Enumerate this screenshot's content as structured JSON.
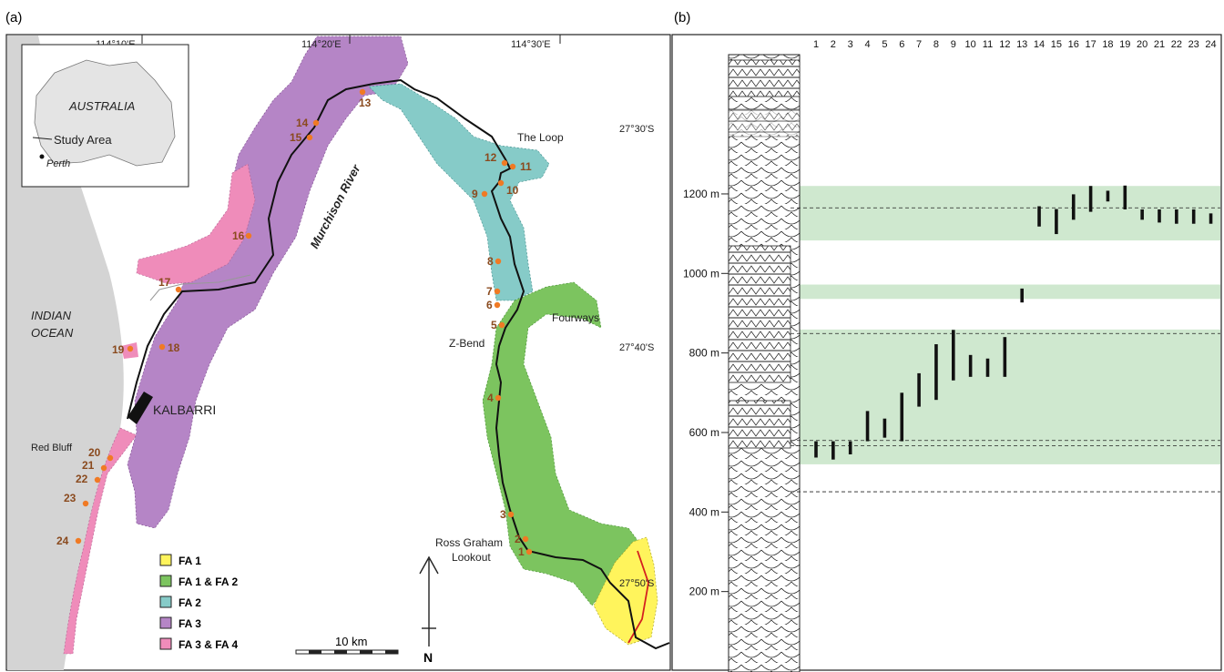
{
  "panels": {
    "a_label": "(a)",
    "b_label": "(b)"
  },
  "map": {
    "longitudes": [
      "114°10'E",
      "114°20'E",
      "114°30'E"
    ],
    "latitudes": [
      "27°30'S",
      "27°40'S",
      "27°50'S"
    ],
    "inset": {
      "country": "AUSTRALIA",
      "study_area": "Study Area",
      "city": "Perth"
    },
    "labels": {
      "ocean": "INDIAN OCEAN",
      "ocean_line1": "INDIAN",
      "ocean_line2": "OCEAN",
      "river": "Murchison River",
      "town": "KALBARRI",
      "red_bluff": "Red Bluff",
      "the_loop": "The Loop",
      "fourways": "Fourways",
      "z_bend": "Z-Bend",
      "ross_graham": "Ross Graham Lookout",
      "ross_line1": "Ross Graham",
      "ross_line2": "Lookout"
    },
    "scale_bar": "10 km",
    "north": "N",
    "legend": [
      {
        "label": "FA 1",
        "color": "#fff45c"
      },
      {
        "label": "FA 1 & FA 2",
        "color": "#7cc45f"
      },
      {
        "label": "FA 2",
        "color": "#86cbc8"
      },
      {
        "label": "FA 3",
        "color": "#b585c6"
      },
      {
        "label": "FA 3 & FA 4",
        "color": "#ef8cba"
      }
    ],
    "sites": [
      "1",
      "2",
      "3",
      "4",
      "5",
      "6",
      "7",
      "8",
      "9",
      "10",
      "11",
      "12",
      "13",
      "14",
      "15",
      "16",
      "17",
      "18",
      "19",
      "20",
      "21",
      "22",
      "23",
      "24"
    ]
  },
  "section": {
    "y_ticks": [
      "200 m",
      "400 m",
      "600 m",
      "800 m",
      "1000 m",
      "1200 m"
    ],
    "columns": [
      "1",
      "2",
      "3",
      "4",
      "5",
      "6",
      "7",
      "8",
      "9",
      "10",
      "11",
      "12",
      "13",
      "14",
      "15",
      "16",
      "17",
      "18",
      "19",
      "20",
      "21",
      "22",
      "23",
      "24"
    ],
    "intervals_m": [
      [
        537,
        578
      ],
      [
        532,
        578
      ],
      [
        545,
        578
      ],
      [
        578,
        654
      ],
      [
        587,
        635
      ],
      [
        578,
        700
      ],
      [
        665,
        749
      ],
      [
        682,
        822
      ],
      [
        731,
        858
      ],
      [
        740,
        795
      ],
      [
        740,
        786
      ],
      [
        740,
        840
      ],
      [
        927,
        962
      ],
      [
        1118,
        1169
      ],
      [
        1099,
        1162
      ],
      [
        1135,
        1199
      ],
      [
        1155,
        1220
      ],
      [
        1181,
        1208
      ],
      [
        1161,
        1221
      ],
      [
        1135,
        1161
      ],
      [
        1128,
        1161
      ],
      [
        1125,
        1161
      ],
      [
        1125,
        1161
      ],
      [
        1125,
        1151
      ]
    ],
    "green_bands_m": [
      [
        1083,
        1220
      ],
      [
        936,
        972
      ],
      [
        520,
        859
      ]
    ],
    "dashed_lines_m": [
      1165,
      849,
      580,
      567,
      451
    ],
    "band_color": "#cfe8cf"
  }
}
